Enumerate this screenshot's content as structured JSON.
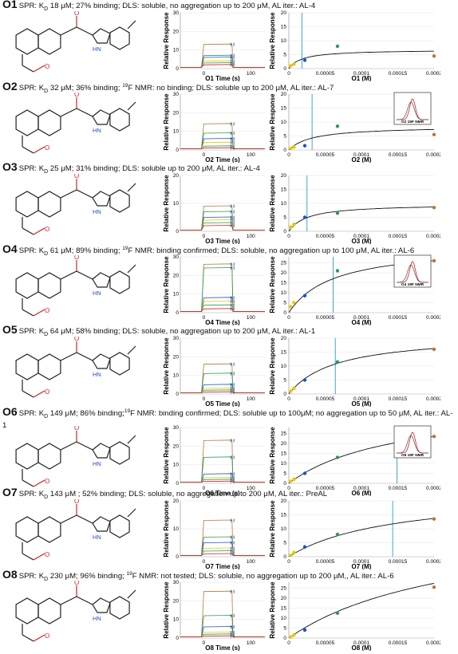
{
  "axes": {
    "sensor_y_label": "Relative Response",
    "binding_y_label": "Relative Response",
    "sensor_y_ticks": [
      "0",
      "10",
      "20",
      "30"
    ],
    "binding_y_ticks": [
      "0",
      "5",
      "10",
      "15",
      "20",
      "25"
    ],
    "sensor_x_ticks": [
      "0",
      "100"
    ],
    "binding_x_ticks": [
      "0",
      "0.00005",
      "0.0001",
      "0.00015",
      "0.0002"
    ]
  },
  "colors": {
    "red": "#d22020",
    "blue": "#1f4fd0",
    "line": "#2a9ec4",
    "brown": "#b07a3a",
    "green": "#2d9a4f",
    "yellow": "#e8c800",
    "navy": "#1a3a8a",
    "fit": "#111111"
  },
  "rows": [
    {
      "id": "O1",
      "label_a": "SPR: K",
      "label_sub": "D",
      "label_rest": " 18 μM; 27% binding; DLS: soluble, no aggregation up to 200 μM, AL iter.: AL-4",
      "sensor_xlabel": "O1 Time (s)",
      "binding_xlabel": "O1 (M)",
      "x_ticks_sensor": [
        "0",
        "100"
      ],
      "y_ticks_binding": [
        "0",
        "5",
        "10",
        "15",
        "20"
      ],
      "binding_ymax": 20,
      "vline": 1.8e-05,
      "points": [
        [
          2.5e-06,
          1.0
        ],
        [
          7e-06,
          1.6
        ],
        [
          2.2e-05,
          3.0
        ],
        [
          6.7e-05,
          8.0
        ],
        [
          0.0002,
          4.5
        ]
      ],
      "fit_max": 6.8,
      "fit_kd": 1.8e-05,
      "sensor_levels": [
        13,
        7,
        6,
        4,
        3,
        2
      ],
      "sensor_ymax": 30,
      "nmr": false
    },
    {
      "id": "O2",
      "label_a": "SPR: K",
      "label_sub": "D",
      "label_rest": " 32 μM; 36% binding; ",
      "f_sup": "19",
      "label_rest2": "F NMR: no binding; DLS: soluble up to 200 μM, AL iter.: AL-7",
      "sensor_xlabel": "O2 Time (s)",
      "binding_xlabel": "O2 (M)",
      "y_ticks_binding": [
        "0",
        "5",
        "10",
        "15",
        "20"
      ],
      "binding_ymax": 20,
      "vline": 3.2e-05,
      "points": [
        [
          2.5e-06,
          0.5
        ],
        [
          7e-06,
          1.0
        ],
        [
          2.2e-05,
          1.5
        ],
        [
          6.7e-05,
          8.5
        ],
        [
          0.0002,
          5.5
        ]
      ],
      "fit_max": 8.5,
      "fit_kd": 3.2e-05,
      "sensor_levels": [
        14,
        9,
        6,
        4,
        2,
        1
      ],
      "sensor_ymax": 30,
      "nmr": true,
      "nmr_label": "O2 19F NMR"
    },
    {
      "id": "O3",
      "label_a": "SPR: K",
      "label_sub": "D",
      "label_rest": " 25 μM; 31% binding; DLS: soluble up to 200 μM, AL iter.: AL-4",
      "sensor_xlabel": "O3 Time (s)",
      "binding_xlabel": "O3 (M)",
      "y_ticks_binding": [
        "0",
        "5",
        "10",
        "15",
        "20"
      ],
      "binding_ymax": 20,
      "vline": 2.5e-05,
      "points": [
        [
          2.5e-06,
          1.5
        ],
        [
          7e-06,
          2.5
        ],
        [
          2.2e-05,
          5.0
        ],
        [
          6.7e-05,
          6.5
        ],
        [
          0.0002,
          8.5
        ]
      ],
      "fit_max": 9.8,
      "fit_kd": 2.5e-05,
      "sensor_levels": [
        9,
        7,
        5,
        4,
        3,
        2
      ],
      "sensor_ymax": 20,
      "nmr": false
    },
    {
      "id": "O4",
      "label_a": "SPR: K",
      "label_sub": "D",
      "label_rest": " 61 μM; 89% binding; ",
      "f_sup": "19",
      "label_rest2": "F NMR: binding confirmed; DLS: soluble, no aggregation up to 100 μM, AL iter.: AL-6",
      "sensor_xlabel": "O4 Time (s)",
      "binding_xlabel": "O4 (M)",
      "y_ticks_binding": [
        "0",
        "5",
        "10",
        "15",
        "20",
        "25"
      ],
      "binding_ymax": 28,
      "vline": 6.1e-05,
      "points": [
        [
          2.5e-06,
          3.0
        ],
        [
          7e-06,
          5.0
        ],
        [
          2.2e-05,
          8.5
        ],
        [
          6.7e-05,
          21.0
        ],
        [
          0.0002,
          26.0
        ]
      ],
      "fit_max": 34.0,
      "fit_kd": 6.1e-05,
      "sensor_levels": [
        26,
        24,
        8,
        6,
        4,
        2
      ],
      "sensor_ymax": 30,
      "nmr": true,
      "nmr_label": "O4 19F NMR"
    },
    {
      "id": "O5",
      "label_a": "SPR: K",
      "label_sub": "D",
      "label_rest": " 64 μM; 58% binding; DLS: soluble, no aggregation up to 200 μM, AL iter.: AL-1",
      "sensor_xlabel": "O5 Time (s)",
      "binding_xlabel": "O5 (M)",
      "y_ticks_binding": [
        "0",
        "5",
        "10",
        "15",
        "20"
      ],
      "binding_ymax": 20,
      "vline": 6.4e-05,
      "points": [
        [
          2.5e-06,
          1.0
        ],
        [
          7e-06,
          2.0
        ],
        [
          2.2e-05,
          5.0
        ],
        [
          6.7e-05,
          11.5
        ],
        [
          0.0002,
          16.0
        ]
      ],
      "fit_max": 21.5,
      "fit_kd": 6.4e-05,
      "sensor_levels": [
        16,
        11,
        5,
        3,
        2,
        1
      ],
      "sensor_ymax": 30,
      "nmr": false
    },
    {
      "id": "O6",
      "label_a": "SPR: K",
      "label_sub": "D",
      "label_rest": " 149 μM; 86% binding;",
      "f_sup": "19",
      "label_rest2": "F NMR: binding confirmed; DLS: soluble up to 100μM; no aggregation up to 50 μM, AL iter.: AL-1",
      "wrap": true,
      "sensor_xlabel": "O6 Time (s)",
      "binding_xlabel": "O6 (M)",
      "y_ticks_binding": [
        "0",
        "5",
        "10",
        "15",
        "20",
        "25"
      ],
      "binding_ymax": 28,
      "vline": 0.000149,
      "points": [
        [
          2.5e-06,
          1.0
        ],
        [
          7e-06,
          2.0
        ],
        [
          2.2e-05,
          5.0
        ],
        [
          6.7e-05,
          13.0
        ],
        [
          0.0002,
          23.5
        ]
      ],
      "fit_max": 41.0,
      "fit_kd": 0.000149,
      "sensor_levels": [
        23,
        14,
        5,
        3,
        2,
        1
      ],
      "sensor_ymax": 30,
      "nmr": true,
      "nmr_label": "O6 19F NMR"
    },
    {
      "id": "O7",
      "label_a": "SPR: K",
      "label_sub": "D",
      "label_rest": " 143 μM ; 52% binding; DLS: soluble, no aggregation up to 200 μM, AL iter.: PreAL",
      "sensor_xlabel": "O7 Time (s)",
      "binding_xlabel": "O7 (M)",
      "y_ticks_binding": [
        "0",
        "5",
        "10",
        "15",
        "20"
      ],
      "binding_ymax": 20,
      "vline": 0.000143,
      "points": [
        [
          2.5e-06,
          0.5
        ],
        [
          7e-06,
          1.5
        ],
        [
          2.2e-05,
          3.5
        ],
        [
          6.7e-05,
          8.0
        ],
        [
          0.0002,
          13.5
        ]
      ],
      "fit_max": 23.5,
      "fit_kd": 0.000143,
      "sensor_levels": [
        13,
        7,
        5,
        3,
        2,
        1
      ],
      "sensor_ymax": 20,
      "nmr": false
    },
    {
      "id": "O8",
      "label_a": "SPR: K",
      "label_sub": "D",
      "label_rest": " 230 μM; 96% binding; ",
      "f_sup": "19",
      "label_rest2": "F NMR: not tested; DLS: soluble, no aggregation up to 200 μM,, AL iter.: AL-6",
      "sensor_xlabel": "O8 Time (s)",
      "binding_xlabel": "O8 (M)",
      "y_ticks_binding": [
        "0",
        "5",
        "10",
        "15",
        "20",
        "25"
      ],
      "binding_ymax": 28,
      "vline": null,
      "points": [
        [
          2.5e-06,
          0.5
        ],
        [
          7e-06,
          1.5
        ],
        [
          2.2e-05,
          4.0
        ],
        [
          6.7e-05,
          12.5
        ],
        [
          0.0002,
          25.5
        ]
      ],
      "fit_max": 59.0,
      "fit_kd": 0.00023,
      "sensor_levels": [
        25,
        12,
        6,
        3,
        2,
        1
      ],
      "sensor_ymax": 30,
      "nmr": false
    }
  ]
}
